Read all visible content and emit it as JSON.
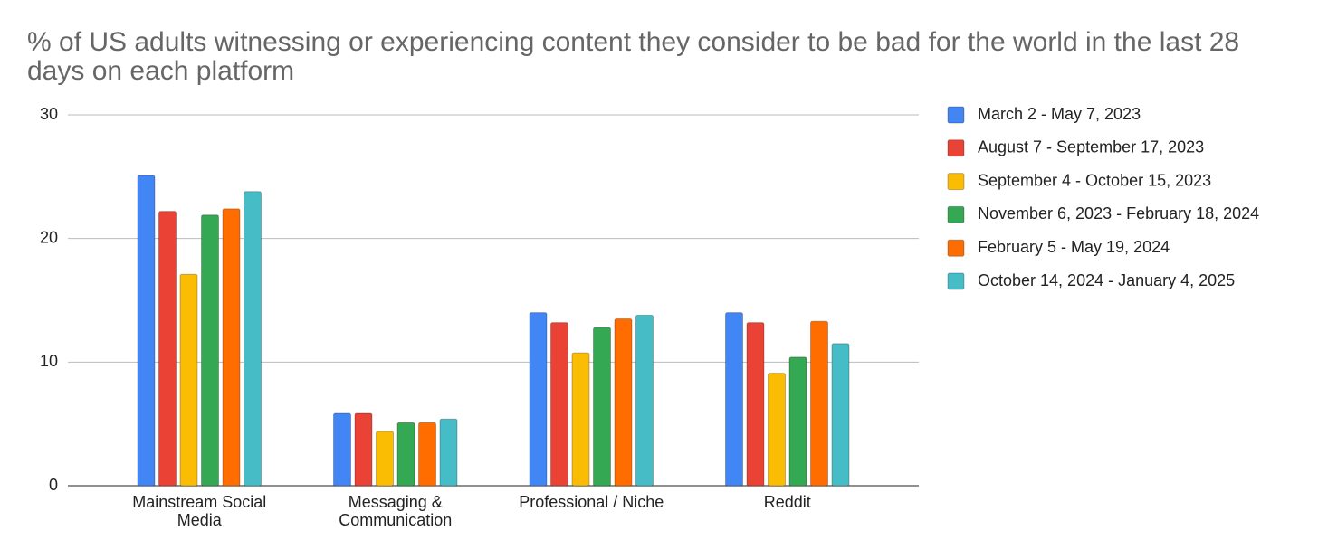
{
  "chart_data": {
    "type": "bar",
    "title": "% of US adults witnessing or experiencing content they consider to be bad for the world in the last 28 days on each platform",
    "categories": [
      "Mainstream Social Media",
      "Messaging & Communication",
      "Professional / Niche",
      "Reddit"
    ],
    "series": [
      {
        "name": "March 2 - May 7, 2023",
        "color": "#4285f4",
        "values": [
          25.1,
          5.85,
          14.0,
          14.0
        ]
      },
      {
        "name": "August 7 - September 17, 2023",
        "color": "#ea4335",
        "values": [
          22.2,
          5.85,
          13.2,
          13.2
        ]
      },
      {
        "name": "September 4 - October 15, 2023",
        "color": "#fbbc04",
        "values": [
          17.1,
          4.4,
          10.75,
          9.1
        ]
      },
      {
        "name": "November 6, 2023 - February 18, 2024",
        "color": "#34a853",
        "values": [
          21.9,
          5.1,
          12.8,
          10.4
        ]
      },
      {
        "name": "February 5 - May 19, 2024",
        "color": "#ff6d01",
        "values": [
          22.4,
          5.1,
          13.5,
          13.3
        ]
      },
      {
        "name": "October 14, 2024 - January 4, 2025",
        "color": "#46bdc6",
        "values": [
          23.8,
          5.4,
          13.8,
          11.5
        ]
      }
    ],
    "ylim": [
      0,
      30
    ],
    "yticks": [
      0,
      10,
      20,
      30
    ],
    "grid": true,
    "legend": "right"
  }
}
